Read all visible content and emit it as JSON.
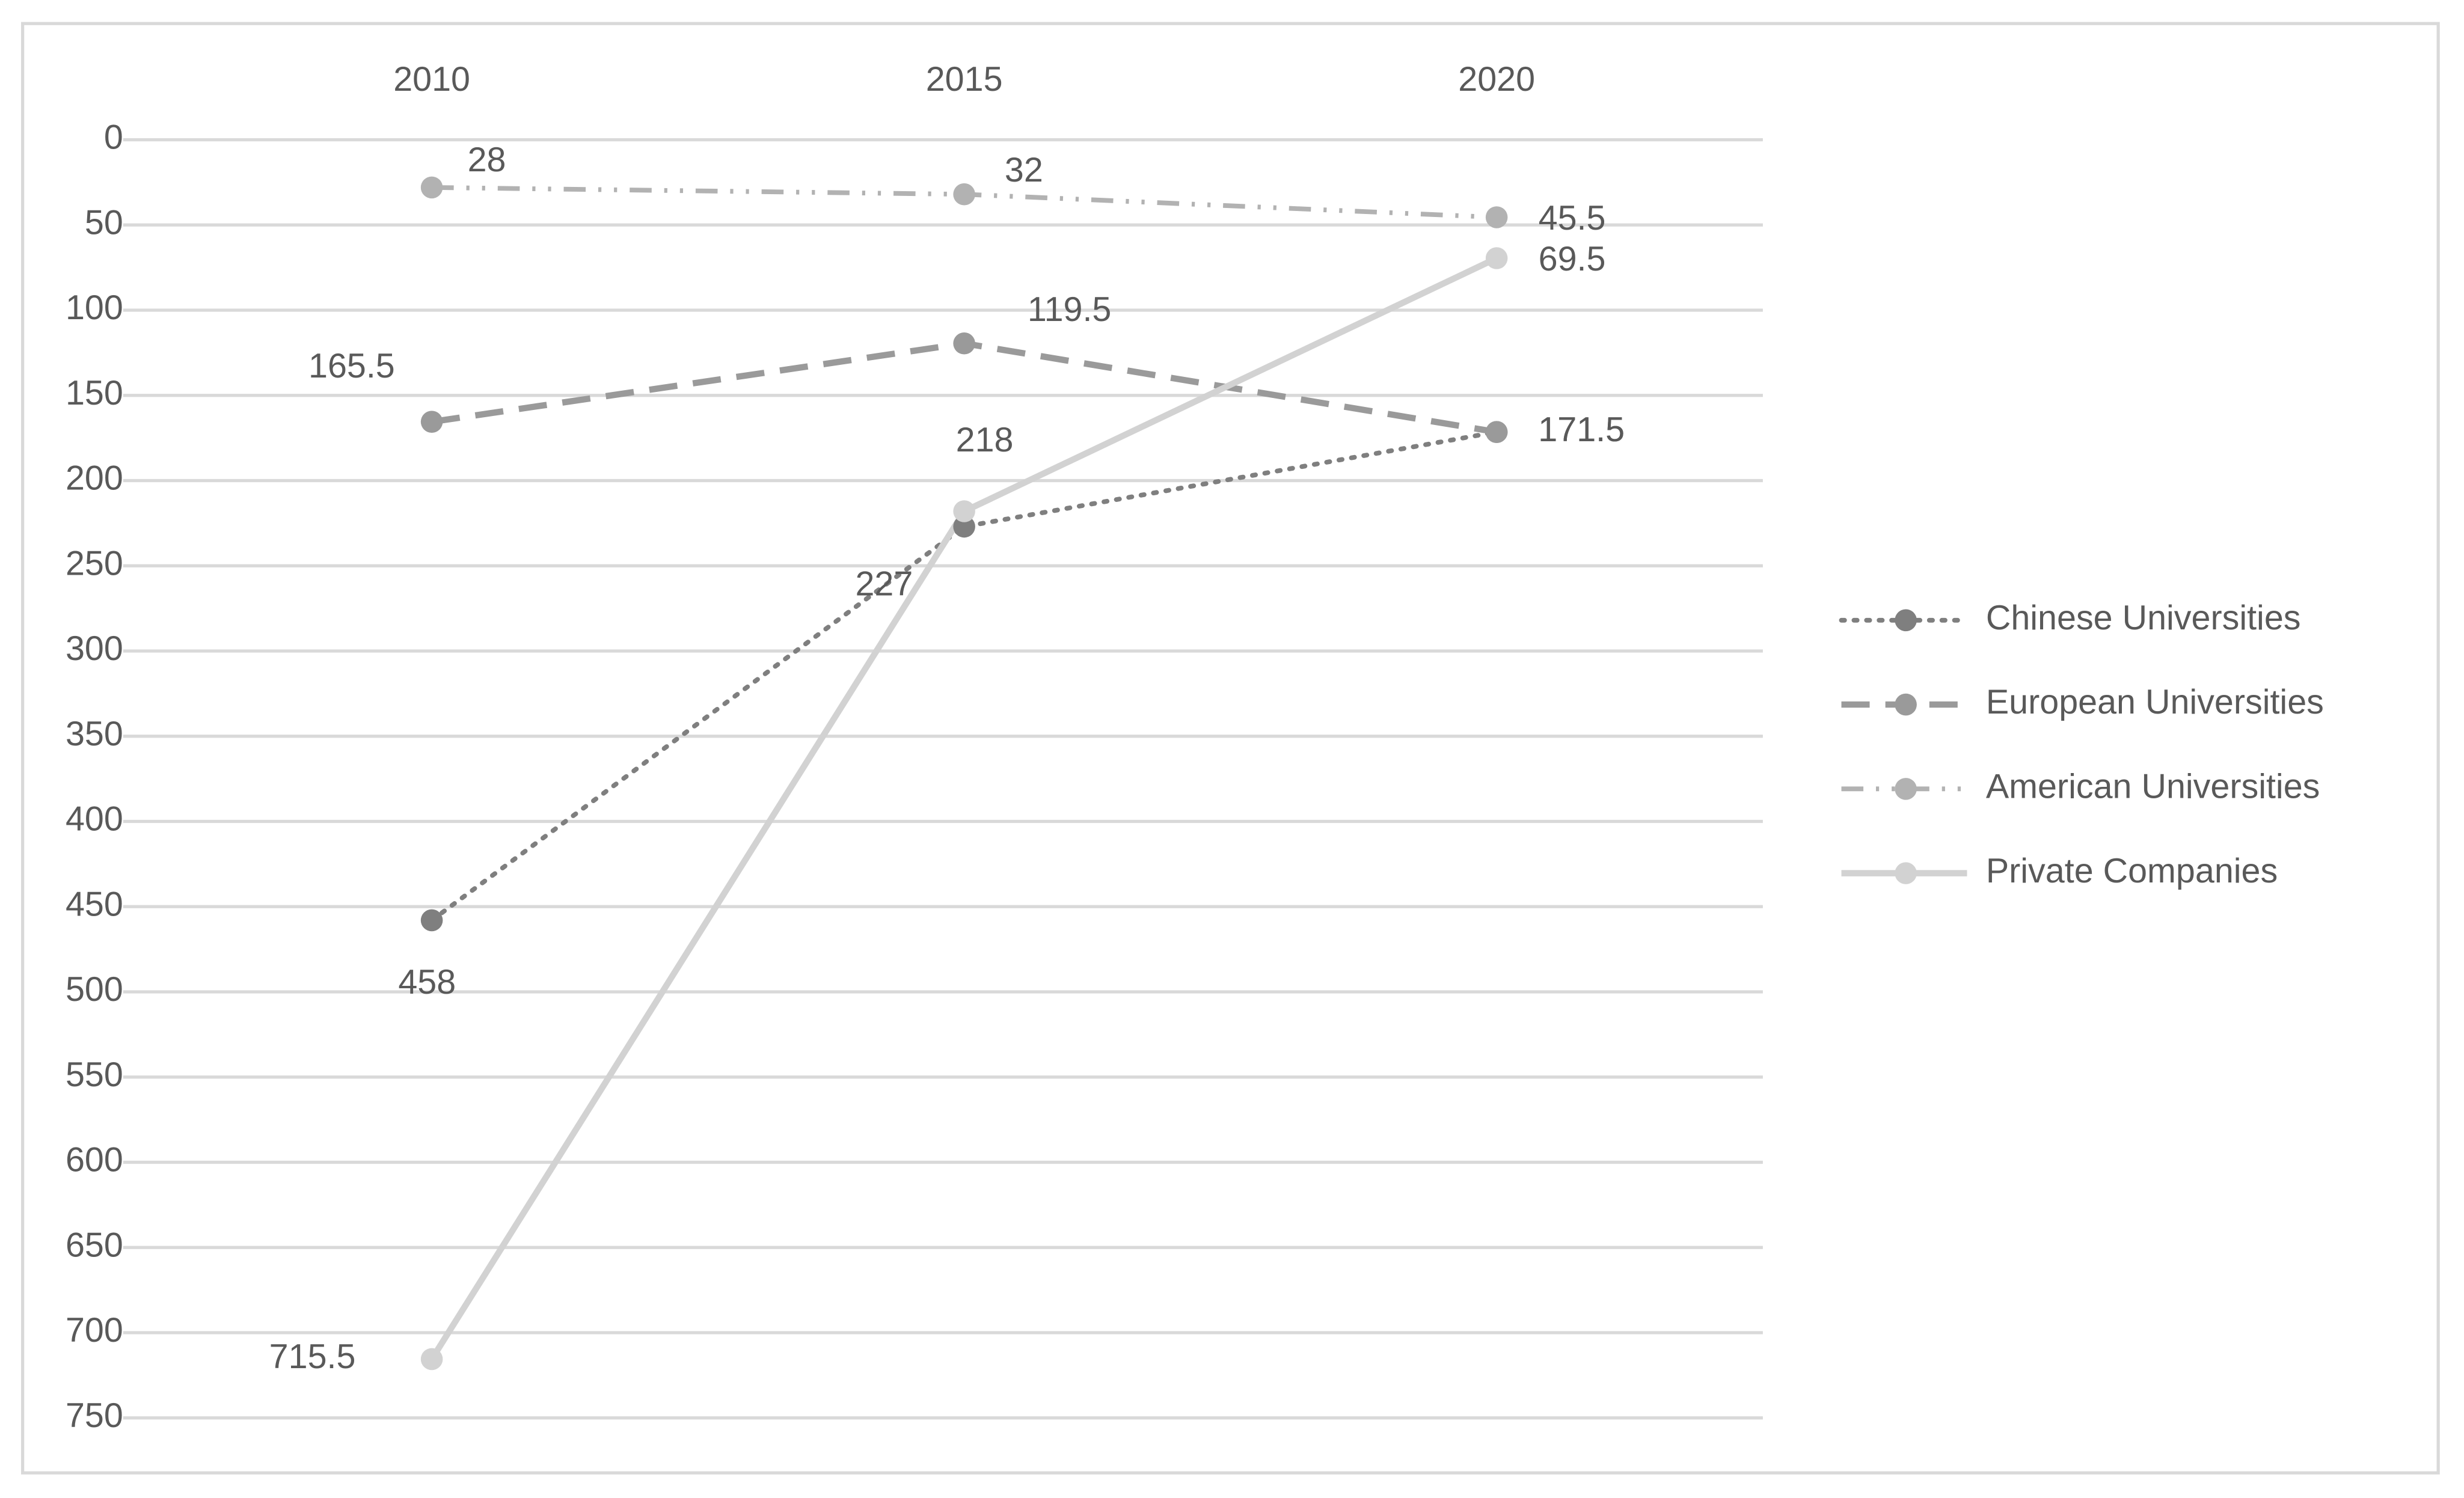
{
  "chart_data": {
    "type": "line",
    "categories": [
      "2010",
      "2015",
      "2020"
    ],
    "series": [
      {
        "name": "Chinese Universities",
        "color": "#7f7f7f",
        "values": [
          458,
          227,
          171.5
        ]
      },
      {
        "name": "European Universities",
        "color": "#9a9a9a",
        "values": [
          165.5,
          119.5,
          171.5
        ]
      },
      {
        "name": "American Universities",
        "color": "#b2b2b2",
        "values": [
          28,
          32,
          45.5
        ]
      },
      {
        "name": "Private Companies",
        "color": "#d2d2d2",
        "values": [
          715.5,
          218,
          69.5
        ]
      }
    ],
    "ylim": [
      0,
      750
    ],
    "y_inverted": true,
    "yticks": [
      0,
      50,
      100,
      150,
      200,
      250,
      300,
      350,
      400,
      450,
      500,
      550,
      600,
      650,
      700,
      750
    ],
    "grid": true,
    "legend": "right"
  }
}
